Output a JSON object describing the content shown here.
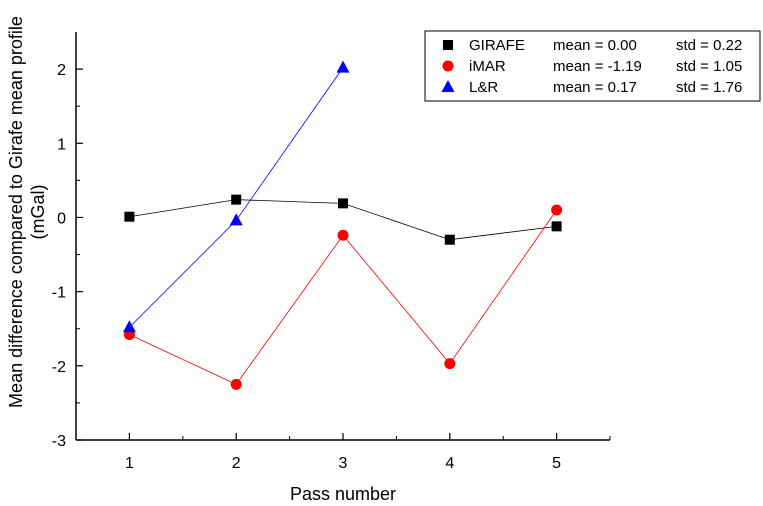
{
  "chart_data": {
    "type": "line",
    "title": "",
    "xlabel": "Pass number",
    "ylabel_lines": [
      "Mean difference compared to Girafe mean profile",
      "(mGal)"
    ],
    "x": [
      1,
      2,
      3,
      4,
      5
    ],
    "xlim": [
      0.5,
      5.5
    ],
    "ylim": [
      -3,
      2.5
    ],
    "xticks": [
      1,
      2,
      3,
      4,
      5
    ],
    "yticks": [
      -3,
      -2,
      -1,
      0,
      1,
      2
    ],
    "grid": false,
    "legend_position": "top-right",
    "series": [
      {
        "name": "GIRAFE",
        "marker": "square",
        "color": "#000000",
        "line_color": "#000000",
        "values": [
          0.01,
          0.24,
          0.19,
          -0.3,
          -0.12
        ],
        "mean_label": "mean =  0.00",
        "std_label": "std = 0.22"
      },
      {
        "name": "iMAR",
        "marker": "circle",
        "color": "#ff0000",
        "line_color": "#ff0000",
        "values": [
          -1.58,
          -2.25,
          -0.24,
          -1.97,
          0.1
        ],
        "mean_label": "mean = -1.19",
        "std_label": "std = 1.05"
      },
      {
        "name": "L&R",
        "marker": "triangle",
        "color": "#0000ff",
        "line_color": "#0000ff",
        "values": [
          -1.48,
          -0.04,
          2.02,
          null,
          null
        ],
        "mean_label": "mean =  0.17",
        "std_label": "std = 1.76"
      }
    ]
  }
}
